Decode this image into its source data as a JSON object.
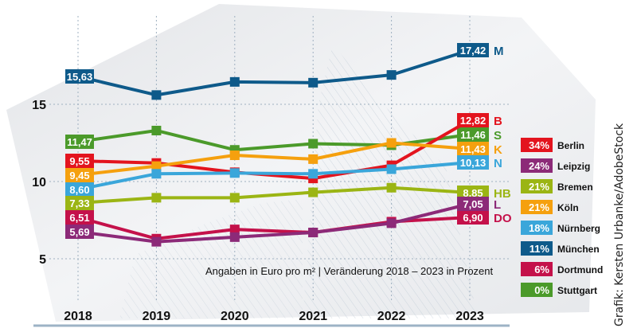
{
  "chart_data": {
    "type": "line",
    "title": "",
    "subtitle": "Angaben in Euro pro m² | Veränderung 2018 – 2023 in Prozent",
    "xlabel": "",
    "ylabel": "",
    "x": [
      "2018",
      "2019",
      "2020",
      "2021",
      "2022",
      "2023"
    ],
    "yticks": [
      5,
      10,
      15
    ],
    "ylim": [
      3.5,
      18.5
    ],
    "grid": true,
    "legend_position": "right",
    "series": [
      {
        "name": "München",
        "code": "M",
        "color": "#0e5a8a",
        "change": "11%",
        "values": [
          15.63,
          15.6,
          16.45,
          16.4,
          16.9,
          17.42
        ],
        "start_label": "15,63",
        "end_label": "17,42"
      },
      {
        "name": "Stuttgart",
        "code": "S",
        "color": "#4b9a2a",
        "change": "0%",
        "values": [
          11.47,
          13.3,
          12.05,
          12.45,
          12.35,
          11.46
        ],
        "start_label": "11,47",
        "end_label": "11,46"
      },
      {
        "name": "Berlin",
        "code": "B",
        "color": "#e3141e",
        "change": "34%",
        "values": [
          9.55,
          11.2,
          10.6,
          10.2,
          11.05,
          12.82
        ],
        "start_label": "9,55",
        "end_label": "12,82"
      },
      {
        "name": "Köln",
        "code": "K",
        "color": "#f5a00e",
        "change": "21%",
        "values": [
          9.45,
          11.0,
          11.7,
          11.45,
          12.5,
          11.43
        ],
        "start_label": "9,45",
        "end_label": "11,43"
      },
      {
        "name": "Nürnberg",
        "code": "N",
        "color": "#3aa6da",
        "change": "18%",
        "values": [
          8.6,
          10.5,
          10.55,
          10.5,
          10.8,
          10.13
        ],
        "start_label": "8,60",
        "end_label": "10,13"
      },
      {
        "name": "Bremen",
        "code": "HB",
        "color": "#9bb514",
        "change": "21%",
        "values": [
          7.33,
          8.95,
          8.95,
          9.3,
          9.6,
          8.85
        ],
        "start_label": "7,33",
        "end_label": "8,85"
      },
      {
        "name": "Dortmund",
        "code": "DO",
        "color": "#c4114a",
        "change": "6%",
        "values": [
          6.51,
          6.3,
          6.9,
          6.7,
          7.4,
          6.9
        ],
        "start_label": "6,51",
        "end_label": "6,90"
      },
      {
        "name": "Leipzig",
        "code": "L",
        "color": "#8c2a78",
        "change": "24%",
        "values": [
          5.69,
          6.1,
          6.4,
          6.7,
          7.3,
          7.05
        ],
        "start_label": "5,69",
        "end_label": "7,05"
      }
    ],
    "legend": [
      {
        "name": "Berlin",
        "change": "34%",
        "color": "#e3141e"
      },
      {
        "name": "Leipzig",
        "change": "24%",
        "color": "#8c2a78"
      },
      {
        "name": "Bremen",
        "change": "21%",
        "color": "#9bb514"
      },
      {
        "name": "Köln",
        "change": "21%",
        "color": "#f5a00e"
      },
      {
        "name": "Nürnberg",
        "change": "18%",
        "color": "#3aa6da"
      },
      {
        "name": "München",
        "change": "11%",
        "color": "#0e5a8a"
      },
      {
        "name": "Dortmund",
        "change": "6%",
        "color": "#c4114a"
      },
      {
        "name": "Stuttgart",
        "change": "0%",
        "color": "#4b9a2a"
      }
    ]
  },
  "credit": "Grafik: Kersten Urbanke/AdobeStock"
}
